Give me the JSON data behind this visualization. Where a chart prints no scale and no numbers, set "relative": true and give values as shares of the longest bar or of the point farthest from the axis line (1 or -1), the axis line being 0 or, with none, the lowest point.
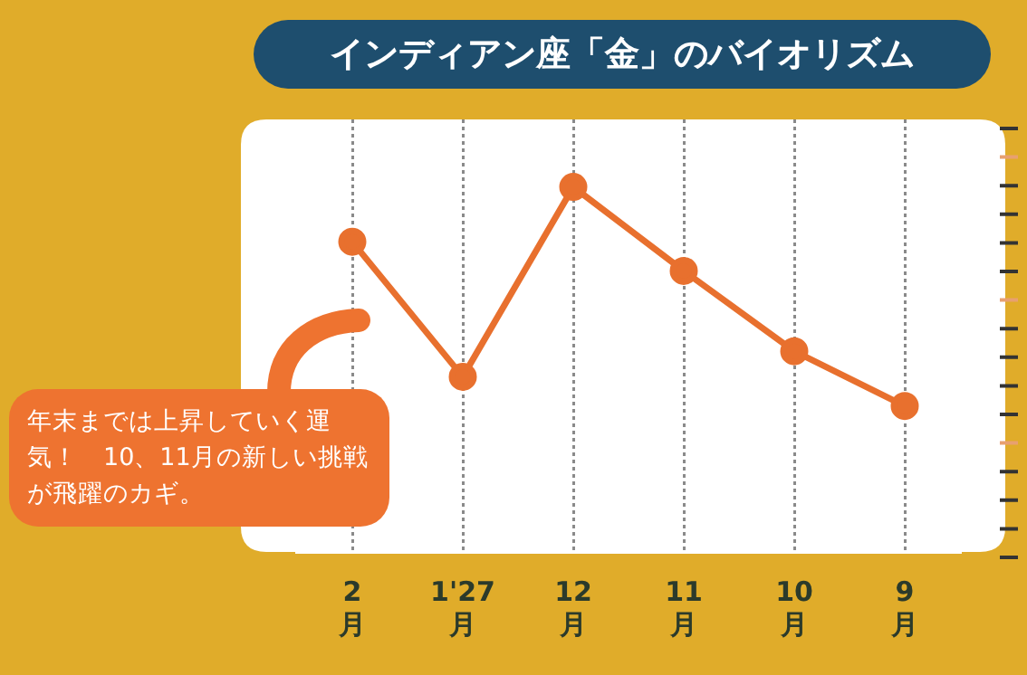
{
  "chart_data": {
    "type": "line",
    "title": "インディアン座「金」のバイオリズム",
    "categories": [
      "2\n月",
      "1'27\n月",
      "12\n月",
      "11\n月",
      "10\n月",
      "9\n月"
    ],
    "values": [
      0.85,
      0.48,
      1,
      0.77,
      0.55,
      0.4
    ],
    "relative": true,
    "color": "#e8702e",
    "marker": "circle",
    "line_style": "solid",
    "grid": "x",
    "legend": false,
    "annotations": [
      "年末までは上昇していく運気！　10、11月の新しい挑戦が飛躍のカギ。"
    ]
  }
}
